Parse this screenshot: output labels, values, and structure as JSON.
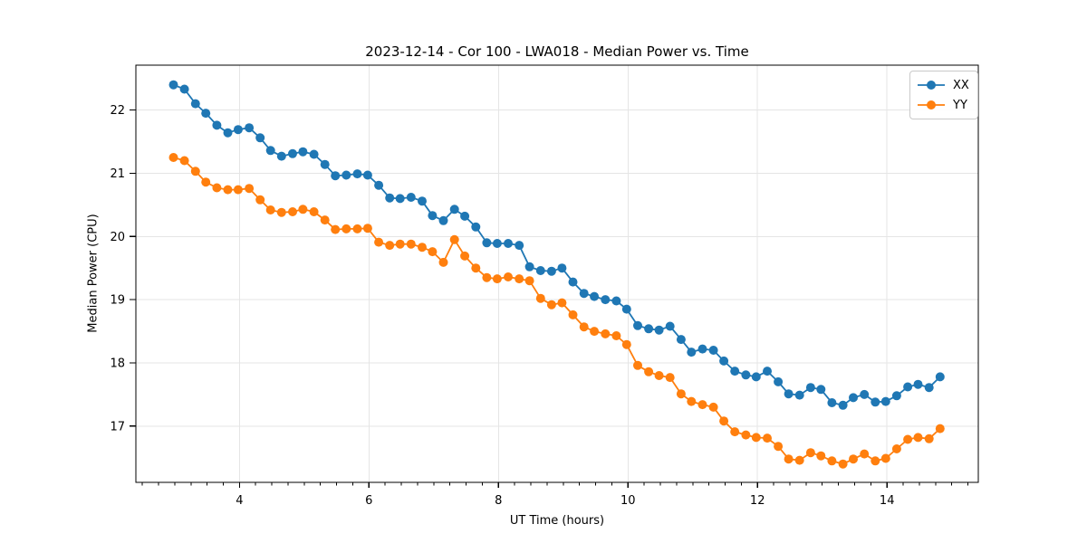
{
  "chart_data": {
    "type": "line",
    "title": "2023-12-14 - Cor 100 - LWA018 - Median Power vs. Time",
    "xlabel": "UT Time (hours)",
    "ylabel": "Median Power (CPU)",
    "xlim": [
      2.4,
      15.41
    ],
    "ylim": [
      16.11,
      22.71
    ],
    "xticks": [
      4,
      6,
      8,
      10,
      12,
      14
    ],
    "yticks": [
      17,
      18,
      19,
      20,
      21,
      22
    ],
    "minor_xtick_step": 0.25,
    "grid": true,
    "legend_position": "upper right",
    "marker": "circle",
    "x": [
      2.98,
      3.15,
      3.32,
      3.48,
      3.65,
      3.82,
      3.98,
      4.15,
      4.32,
      4.48,
      4.65,
      4.82,
      4.98,
      5.15,
      5.32,
      5.48,
      5.65,
      5.82,
      5.98,
      6.15,
      6.32,
      6.48,
      6.65,
      6.82,
      6.98,
      7.15,
      7.32,
      7.48,
      7.65,
      7.82,
      7.98,
      8.15,
      8.32,
      8.48,
      8.65,
      8.82,
      8.98,
      9.15,
      9.32,
      9.48,
      9.65,
      9.82,
      9.98,
      10.15,
      10.32,
      10.48,
      10.65,
      10.82,
      10.98,
      11.15,
      11.32,
      11.48,
      11.65,
      11.82,
      11.98,
      12.15,
      12.32,
      12.48,
      12.65,
      12.82,
      12.98,
      13.15,
      13.32,
      13.48,
      13.65,
      13.82,
      13.98,
      14.15,
      14.32,
      14.48,
      14.65,
      14.82
    ],
    "series": [
      {
        "name": "XX",
        "color": "#1f77b4",
        "values": [
          22.4,
          22.33,
          22.1,
          21.95,
          21.76,
          21.64,
          21.69,
          21.72,
          21.56,
          21.36,
          21.27,
          21.31,
          21.34,
          21.3,
          21.14,
          20.96,
          20.97,
          20.99,
          20.97,
          20.81,
          20.61,
          20.6,
          20.62,
          20.56,
          20.33,
          20.25,
          20.43,
          20.32,
          20.15,
          19.9,
          19.89,
          19.89,
          19.86,
          19.52,
          19.46,
          19.45,
          19.5,
          19.28,
          19.1,
          19.05,
          19.0,
          18.98,
          18.85,
          18.59,
          18.54,
          18.52,
          18.58,
          18.37,
          18.17,
          18.22,
          18.2,
          18.03,
          17.87,
          17.81,
          17.78,
          17.87,
          17.7,
          17.51,
          17.49,
          17.61,
          17.58,
          17.37,
          17.33,
          17.45,
          17.5,
          17.38,
          17.39,
          17.48,
          17.62,
          17.66,
          17.61,
          17.78
        ]
      },
      {
        "name": "YY",
        "color": "#ff7f0e",
        "values": [
          21.25,
          21.2,
          21.03,
          20.86,
          20.77,
          20.74,
          20.74,
          20.76,
          20.58,
          20.42,
          20.38,
          20.39,
          20.43,
          20.39,
          20.26,
          20.11,
          20.12,
          20.12,
          20.13,
          19.91,
          19.86,
          19.88,
          19.88,
          19.83,
          19.76,
          19.59,
          19.95,
          19.69,
          19.5,
          19.35,
          19.33,
          19.36,
          19.33,
          19.3,
          19.02,
          18.92,
          18.95,
          18.76,
          18.57,
          18.5,
          18.46,
          18.43,
          18.29,
          17.96,
          17.86,
          17.8,
          17.77,
          17.51,
          17.39,
          17.34,
          17.3,
          17.08,
          16.91,
          16.86,
          16.82,
          16.81,
          16.68,
          16.48,
          16.46,
          16.58,
          16.53,
          16.45,
          16.4,
          16.48,
          16.56,
          16.45,
          16.49,
          16.64,
          16.79,
          16.82,
          16.8,
          16.96
        ]
      }
    ],
    "styles": {
      "grid_color": "#e5e5e5",
      "spine_color": "#000000",
      "tick_color": "#000000",
      "background": "#ffffff"
    }
  }
}
